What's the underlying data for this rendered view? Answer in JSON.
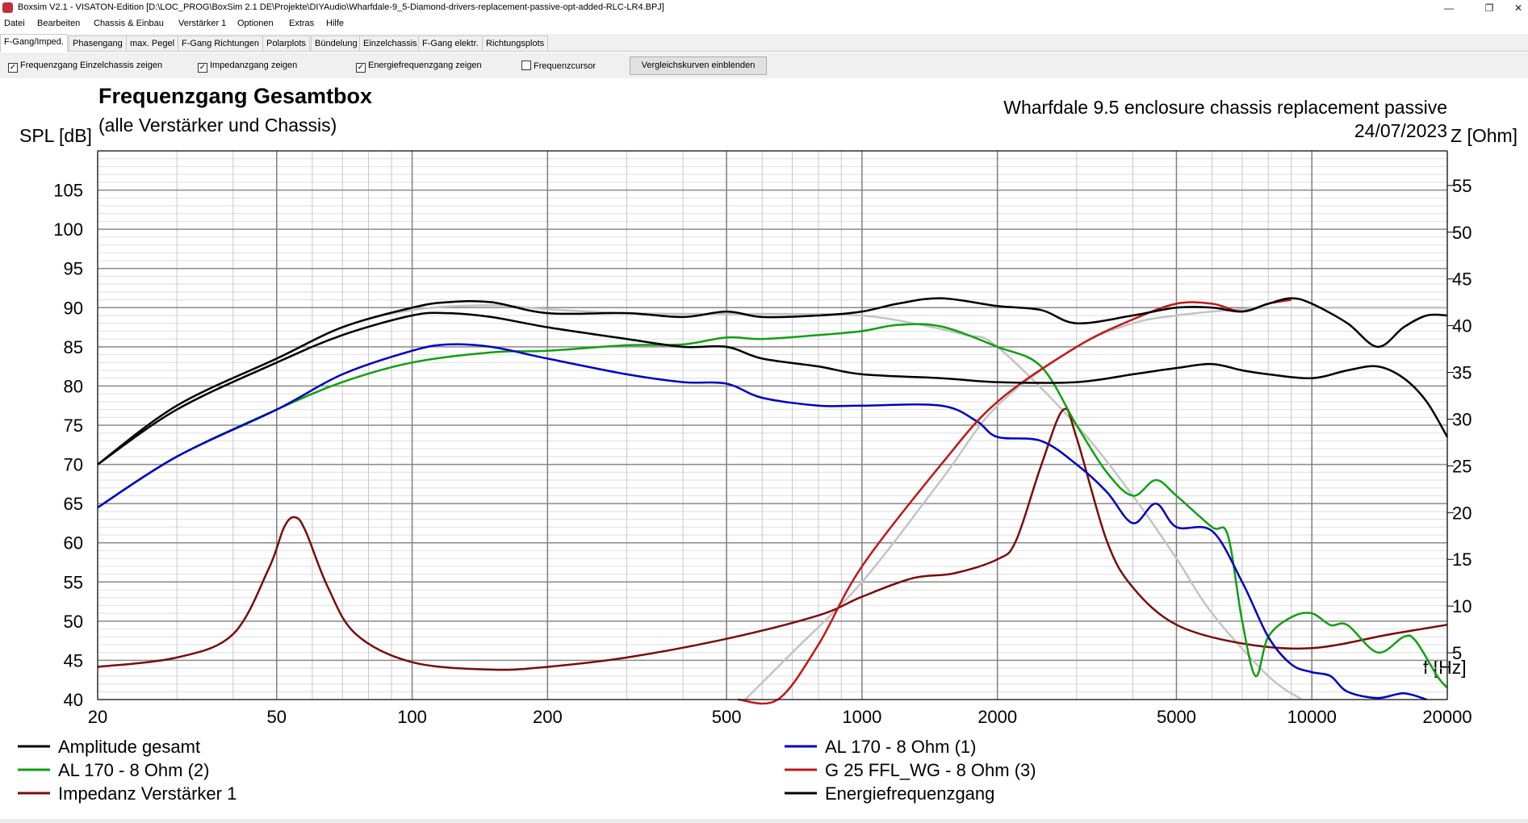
{
  "window": {
    "title": "Boxsim V2.1 - VISATON-Edition [D:\\LOC_PROG\\BoxSim 2.1 DE\\Projekte\\DIYAudio\\Wharfdale-9_5-Diamond-drivers-replacement-passive-opt-added-RLC-LR4.BPJ]",
    "minimize_glyph": "—",
    "maximize_glyph": "❐",
    "close_glyph": "✕"
  },
  "menu": [
    "Datei",
    "Bearbeiten",
    "Chassis & Einbau",
    "Verstärker 1",
    "Optionen",
    "Extras",
    "Hilfe"
  ],
  "tabs": [
    "F-Gang/Imped.",
    "Phasengang",
    "max. Pegel",
    "F-Gang Richtungen",
    "Polarplots",
    "Bündelung",
    "Einzelchassis",
    "F-Gang elektr.",
    "Richtungsplots"
  ],
  "active_tab": 0,
  "options": {
    "checkboxes": [
      {
        "label": "Frequenzgang Einzelchassis zeigen",
        "checked": true
      },
      {
        "label": "Impedanzgang zeigen",
        "checked": true
      },
      {
        "label": "Energiefrequenzgang zeigen",
        "checked": true
      },
      {
        "label": "Frequenzcursor",
        "checked": false
      }
    ],
    "compare_button": "Vergleichskurven einblenden"
  },
  "chart_data": {
    "type": "line",
    "title": "Frequenzgang Gesamtbox",
    "subtitle": "(alle Verstärker und Chassis)",
    "project_name": "Wharfdale 9.5 enclosure chassis replacement passive",
    "date": "24/07/2023",
    "ylabel": "SPL [dB]",
    "y2label": "Z [Ohm]",
    "xlabel": "f [Hz]",
    "x_scale": "log",
    "xlim": [
      20,
      20000
    ],
    "ylim": [
      40,
      105
    ],
    "y2lim": [
      0,
      56
    ],
    "x_ticks": [
      {
        "v": 20,
        "label": "20"
      },
      {
        "v": 50,
        "label": "50"
      },
      {
        "v": 100,
        "label": "100"
      },
      {
        "v": 200,
        "label": "200"
      },
      {
        "v": 500,
        "label": "500"
      },
      {
        "v": 1000,
        "label": "1000"
      },
      {
        "v": 2000,
        "label": "2000"
      },
      {
        "v": 5000,
        "label": "5000"
      },
      {
        "v": 10000,
        "label": "10000"
      },
      {
        "v": 20000,
        "label": "20000"
      }
    ],
    "y_ticks": [
      40,
      45,
      50,
      55,
      60,
      65,
      70,
      75,
      80,
      85,
      90,
      95,
      100,
      105
    ],
    "y2_ticks": [
      5,
      10,
      15,
      20,
      25,
      30,
      35,
      40,
      45,
      50,
      55
    ],
    "grid": true,
    "legend_placement": "bottom",
    "series": [
      {
        "name": "Amplitude gesamt",
        "color": "#000000",
        "axis": "spl",
        "legend_col": 0,
        "legend_row": 0,
        "points": [
          [
            20,
            70
          ],
          [
            30,
            77
          ],
          [
            50,
            83
          ],
          [
            70,
            86.5
          ],
          [
            100,
            89
          ],
          [
            120,
            89.3
          ],
          [
            150,
            88.8
          ],
          [
            200,
            87.5
          ],
          [
            300,
            86
          ],
          [
            400,
            85
          ],
          [
            500,
            85
          ],
          [
            600,
            83.5
          ],
          [
            800,
            82.5
          ],
          [
            1000,
            81.5
          ],
          [
            1500,
            81
          ],
          [
            2000,
            80.5
          ],
          [
            3000,
            80.5
          ],
          [
            4000,
            81.5
          ],
          [
            5000,
            82.3
          ],
          [
            6000,
            82.8
          ],
          [
            7000,
            82
          ],
          [
            8000,
            81.5
          ],
          [
            10000,
            81
          ],
          [
            12000,
            82
          ],
          [
            14000,
            82.5
          ],
          [
            16000,
            81
          ],
          [
            18000,
            78
          ],
          [
            20000,
            73.5
          ]
        ]
      },
      {
        "name": "AL 170 - 8 Ohm (1)",
        "color": "#0000c0",
        "axis": "spl",
        "legend_col": 1,
        "legend_row": 0,
        "points": [
          [
            20,
            64.5
          ],
          [
            30,
            71
          ],
          [
            50,
            77
          ],
          [
            70,
            81.5
          ],
          [
            100,
            84.5
          ],
          [
            120,
            85.3
          ],
          [
            150,
            85
          ],
          [
            200,
            83.5
          ],
          [
            300,
            81.5
          ],
          [
            400,
            80.5
          ],
          [
            500,
            80.3
          ],
          [
            600,
            78.5
          ],
          [
            800,
            77.5
          ],
          [
            1000,
            77.5
          ],
          [
            1500,
            77.5
          ],
          [
            1800,
            75.5
          ],
          [
            2000,
            73.5
          ],
          [
            2500,
            73
          ],
          [
            3000,
            70
          ],
          [
            3500,
            66.5
          ],
          [
            4000,
            62.5
          ],
          [
            4500,
            65
          ],
          [
            5000,
            62
          ],
          [
            6000,
            61.5
          ],
          [
            7000,
            55
          ],
          [
            8000,
            48
          ],
          [
            9000,
            44.5
          ],
          [
            10000,
            43.5
          ],
          [
            11000,
            43
          ],
          [
            12000,
            41
          ],
          [
            14000,
            40.2
          ],
          [
            16000,
            40.8
          ],
          [
            18000,
            40
          ]
        ]
      },
      {
        "name": "AL 170 - 8 Ohm (2)",
        "color": "#10a010",
        "axis": "spl",
        "legend_col": 0,
        "legend_row": 1,
        "points": [
          [
            20,
            64.5
          ],
          [
            30,
            71
          ],
          [
            50,
            77
          ],
          [
            70,
            80.5
          ],
          [
            100,
            83
          ],
          [
            150,
            84.3
          ],
          [
            200,
            84.5
          ],
          [
            300,
            85.2
          ],
          [
            400,
            85.3
          ],
          [
            500,
            86.2
          ],
          [
            600,
            86
          ],
          [
            800,
            86.5
          ],
          [
            1000,
            87
          ],
          [
            1200,
            87.8
          ],
          [
            1500,
            87.6
          ],
          [
            2000,
            85
          ],
          [
            2500,
            82.5
          ],
          [
            3000,
            75
          ],
          [
            3500,
            69
          ],
          [
            4000,
            66
          ],
          [
            4500,
            68
          ],
          [
            5000,
            66
          ],
          [
            6000,
            62
          ],
          [
            6500,
            61
          ],
          [
            7000,
            50
          ],
          [
            7500,
            43
          ],
          [
            8000,
            48
          ],
          [
            9000,
            50.5
          ],
          [
            10000,
            51
          ],
          [
            11000,
            49.5
          ],
          [
            12000,
            49.5
          ],
          [
            14000,
            46
          ],
          [
            16000,
            48
          ],
          [
            17000,
            47.5
          ],
          [
            19000,
            43
          ],
          [
            20000,
            41.5
          ]
        ]
      },
      {
        "name": "G 25 FFL_WG - 8 Ohm (3)",
        "color": "#c01818",
        "axis": "spl",
        "legend_col": 1,
        "legend_row": 1,
        "points": [
          [
            530,
            40
          ],
          [
            650,
            40
          ],
          [
            800,
            47
          ],
          [
            1000,
            57
          ],
          [
            1500,
            70
          ],
          [
            2000,
            78
          ],
          [
            3000,
            85
          ],
          [
            4000,
            88.5
          ],
          [
            5000,
            90.5
          ],
          [
            6000,
            90.5
          ],
          [
            7000,
            89.5
          ],
          [
            8000,
            90.5
          ],
          [
            9000,
            91
          ]
        ]
      },
      {
        "name": "Impedanz Verstärker 1",
        "color": "#7a0c0c",
        "axis": "ohm",
        "legend_col": 0,
        "legend_row": 2,
        "points": [
          [
            20,
            3.5
          ],
          [
            30,
            4.5
          ],
          [
            40,
            7
          ],
          [
            48,
            14
          ],
          [
            52,
            18.5
          ],
          [
            55,
            19.5
          ],
          [
            58,
            18
          ],
          [
            65,
            12
          ],
          [
            75,
            7
          ],
          [
            100,
            4
          ],
          [
            150,
            3.2
          ],
          [
            200,
            3.5
          ],
          [
            300,
            4.5
          ],
          [
            500,
            6.5
          ],
          [
            800,
            9
          ],
          [
            1000,
            11
          ],
          [
            1300,
            13
          ],
          [
            1600,
            13.5
          ],
          [
            2000,
            15
          ],
          [
            2200,
            17
          ],
          [
            2500,
            25
          ],
          [
            2800,
            31
          ],
          [
            3000,
            28
          ],
          [
            3500,
            17
          ],
          [
            4000,
            12
          ],
          [
            5000,
            8
          ],
          [
            7000,
            6
          ],
          [
            10000,
            5.5
          ],
          [
            15000,
            7
          ],
          [
            20000,
            8
          ]
        ]
      },
      {
        "name": "Energiefrequenzgang",
        "color": "#000000",
        "axis": "spl",
        "legend_col": 1,
        "legend_row": 2,
        "points": [
          [
            20,
            70
          ],
          [
            30,
            77.5
          ],
          [
            50,
            83.5
          ],
          [
            70,
            87.5
          ],
          [
            100,
            90
          ],
          [
            120,
            90.7
          ],
          [
            150,
            90.7
          ],
          [
            200,
            89.3
          ],
          [
            300,
            89.3
          ],
          [
            400,
            88.8
          ],
          [
            500,
            89.5
          ],
          [
            600,
            88.8
          ],
          [
            800,
            89
          ],
          [
            1000,
            89.5
          ],
          [
            1200,
            90.5
          ],
          [
            1500,
            91.2
          ],
          [
            2000,
            90.2
          ],
          [
            2500,
            89.7
          ],
          [
            3000,
            88
          ],
          [
            4000,
            89
          ],
          [
            5000,
            90
          ],
          [
            6000,
            90
          ],
          [
            7000,
            89.5
          ],
          [
            8000,
            90.5
          ],
          [
            9000,
            91.2
          ],
          [
            10000,
            90.5
          ],
          [
            12000,
            88
          ],
          [
            14000,
            85
          ],
          [
            16000,
            87.5
          ],
          [
            18000,
            89
          ],
          [
            20000,
            89
          ]
        ]
      },
      {
        "name": "",
        "color": "#c4c4c4",
        "axis": "spl",
        "legend_col": -1,
        "legend_row": -1,
        "points": [
          [
            20,
            70
          ],
          [
            30,
            77.5
          ],
          [
            50,
            83.5
          ],
          [
            70,
            87.5
          ],
          [
            100,
            89.7
          ],
          [
            150,
            90.3
          ],
          [
            200,
            89.8
          ],
          [
            300,
            89.3
          ],
          [
            500,
            89.2
          ],
          [
            700,
            89.2
          ],
          [
            1000,
            89
          ],
          [
            1300,
            88
          ],
          [
            1700,
            86.5
          ],
          [
            2000,
            85
          ],
          [
            3000,
            75
          ],
          [
            4000,
            66
          ],
          [
            5000,
            58
          ],
          [
            6000,
            51
          ],
          [
            8000,
            43
          ],
          [
            9500,
            40
          ]
        ]
      },
      {
        "name": "",
        "color": "#c4c4c4",
        "axis": "spl",
        "legend_col": -1,
        "legend_row": -1,
        "points": [
          [
            550,
            40
          ],
          [
            700,
            46
          ],
          [
            1000,
            55
          ],
          [
            1500,
            68
          ],
          [
            2000,
            77.5
          ],
          [
            3000,
            85
          ],
          [
            4000,
            88
          ],
          [
            5000,
            89
          ],
          [
            6000,
            89.5
          ],
          [
            8000,
            90
          ],
          [
            10000,
            90
          ],
          [
            20000,
            90
          ]
        ]
      }
    ]
  }
}
